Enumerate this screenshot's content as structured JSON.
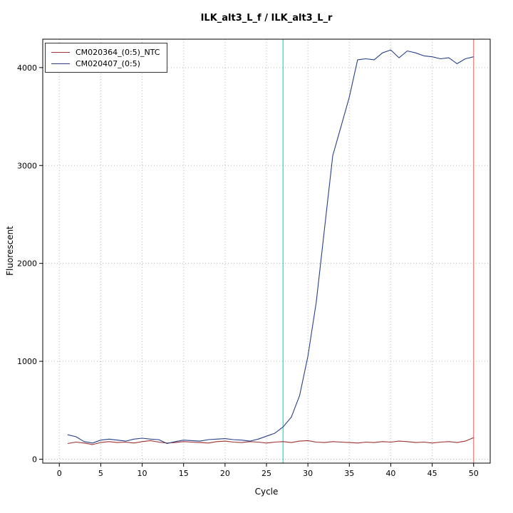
{
  "chart_data": {
    "type": "line",
    "title": "ILK_alt3_L_f / ILK_alt3_L_r",
    "xlabel": "Cycle",
    "ylabel": "Fluorescent",
    "xlim": [
      -2,
      52
    ],
    "ylim": [
      -40,
      4290
    ],
    "xticks": [
      0,
      5,
      10,
      15,
      20,
      25,
      30,
      35,
      40,
      45,
      50
    ],
    "yticks": [
      0,
      1000,
      2000,
      3000,
      4000
    ],
    "grid": true,
    "legend_position": "top-left",
    "threshold_line": {
      "x": 27,
      "color": "#00e5ee"
    },
    "end_line": {
      "x": 50,
      "color": "#f07878"
    },
    "x": [
      1,
      2,
      3,
      4,
      5,
      6,
      7,
      8,
      9,
      10,
      11,
      12,
      13,
      14,
      15,
      16,
      17,
      18,
      19,
      20,
      21,
      22,
      23,
      24,
      25,
      26,
      27,
      28,
      29,
      30,
      31,
      32,
      33,
      34,
      35,
      36,
      37,
      38,
      39,
      40,
      41,
      42,
      43,
      44,
      45,
      46,
      47,
      48,
      49,
      50
    ],
    "series": [
      {
        "name": "CM020364_(0:5)_NTC",
        "color": "#a03030",
        "values": [
          160,
          175,
          165,
          150,
          170,
          180,
          170,
          175,
          165,
          180,
          190,
          175,
          165,
          170,
          180,
          175,
          170,
          165,
          180,
          185,
          175,
          170,
          180,
          175,
          165,
          175,
          180,
          170,
          185,
          190,
          175,
          170,
          180,
          175,
          170,
          165,
          175,
          170,
          180,
          175,
          185,
          180,
          170,
          175,
          165,
          175,
          180,
          170,
          185,
          220
        ]
      },
      {
        "name": "CM020407_(0:5)",
        "color": "#27408b",
        "values": [
          250,
          230,
          180,
          165,
          195,
          205,
          195,
          185,
          205,
          215,
          205,
          200,
          160,
          180,
          195,
          190,
          185,
          200,
          205,
          210,
          200,
          195,
          185,
          205,
          235,
          265,
          330,
          430,
          650,
          1050,
          1600,
          2350,
          3100,
          3400,
          3700,
          4080,
          4090,
          4080,
          4150,
          4180,
          4100,
          4170,
          4150,
          4120,
          4110,
          4090,
          4100,
          4040,
          4090,
          4110
        ]
      }
    ]
  }
}
